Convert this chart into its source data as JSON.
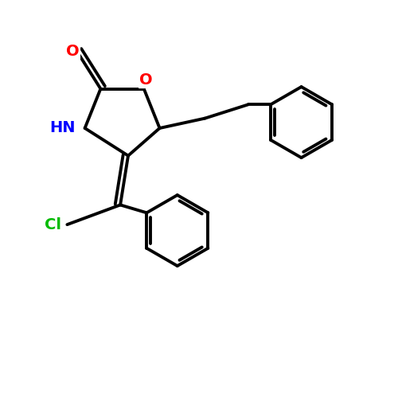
{
  "background_color": "#ffffff",
  "bond_color": "#000000",
  "bond_width": 2.8,
  "atom_colors": {
    "O": "#ff0000",
    "N": "#0000ff",
    "Cl": "#00bb00",
    "C": "#000000"
  },
  "figsize": [
    5.0,
    5.0
  ],
  "dpi": 100
}
